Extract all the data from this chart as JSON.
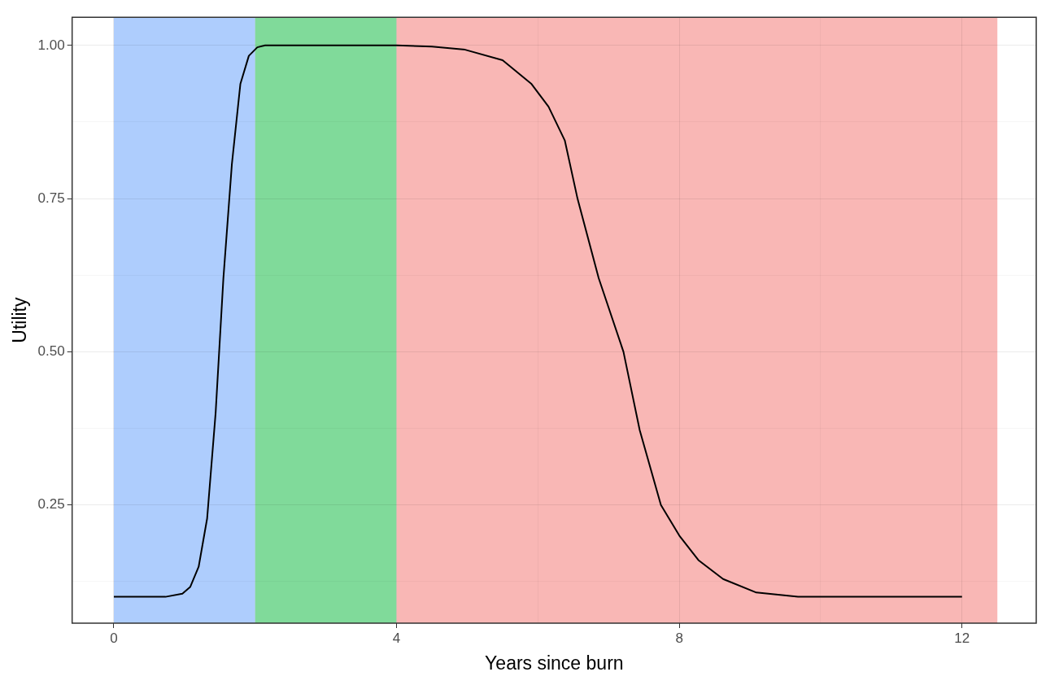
{
  "chart_data": {
    "type": "line",
    "xlabel": "Years since burn",
    "ylabel": "Utility",
    "xlim": [
      -0.59,
      13.05
    ],
    "ylim": [
      0.057,
      1.046
    ],
    "xticks": [
      0,
      {
        "value": 2,
        "label": null
      },
      4,
      {
        "value": 6,
        "label": null
      },
      8,
      {
        "value": 10,
        "label": null
      },
      12
    ],
    "yticks": [
      {
        "value": 0.125,
        "label": null
      },
      {
        "value": 0.25,
        "label": "0.25"
      },
      {
        "value": 0.375,
        "label": null
      },
      {
        "value": 0.5,
        "label": "0.50"
      },
      {
        "value": 0.625,
        "label": null
      },
      {
        "value": 0.75,
        "label": "0.75"
      },
      {
        "value": 0.875,
        "label": null
      },
      {
        "value": 1,
        "label": "1.00"
      }
    ],
    "grid": true,
    "legend": false,
    "marker": "none",
    "line_style": "solid",
    "bands": [
      {
        "axis": "x",
        "from": 0,
        "to": 2,
        "color": "#aecdfd"
      },
      {
        "axis": "x",
        "from": 2,
        "to": 4,
        "color": "#80da9a"
      },
      {
        "axis": "x",
        "from": 4,
        "to": 12.5,
        "color": "#f9b7b5"
      }
    ],
    "series": [
      {
        "color": "#000000",
        "x": [
          0,
          0.5,
          0.73,
          0.97,
          1.08,
          1.2,
          1.32,
          1.44,
          1.55,
          1.67,
          1.79,
          1.91,
          2.03,
          2.14,
          3,
          4,
          4.5,
          4.97,
          5.5,
          5.91,
          6.15,
          6.38,
          6.56,
          6.86,
          7.21,
          7.44,
          7.74,
          8,
          8.27,
          8.62,
          9.09,
          9.68,
          10.5,
          12
        ],
        "values": [
          0.1,
          0.1,
          0.1,
          0.105,
          0.116,
          0.149,
          0.228,
          0.4,
          0.62,
          0.806,
          0.937,
          0.983,
          0.997,
          1,
          1,
          1,
          0.998,
          0.993,
          0.976,
          0.937,
          0.9,
          0.845,
          0.75,
          0.62,
          0.5,
          0.372,
          0.25,
          0.2,
          0.16,
          0.129,
          0.107,
          0.1,
          0.1,
          0.1
        ]
      }
    ]
  }
}
